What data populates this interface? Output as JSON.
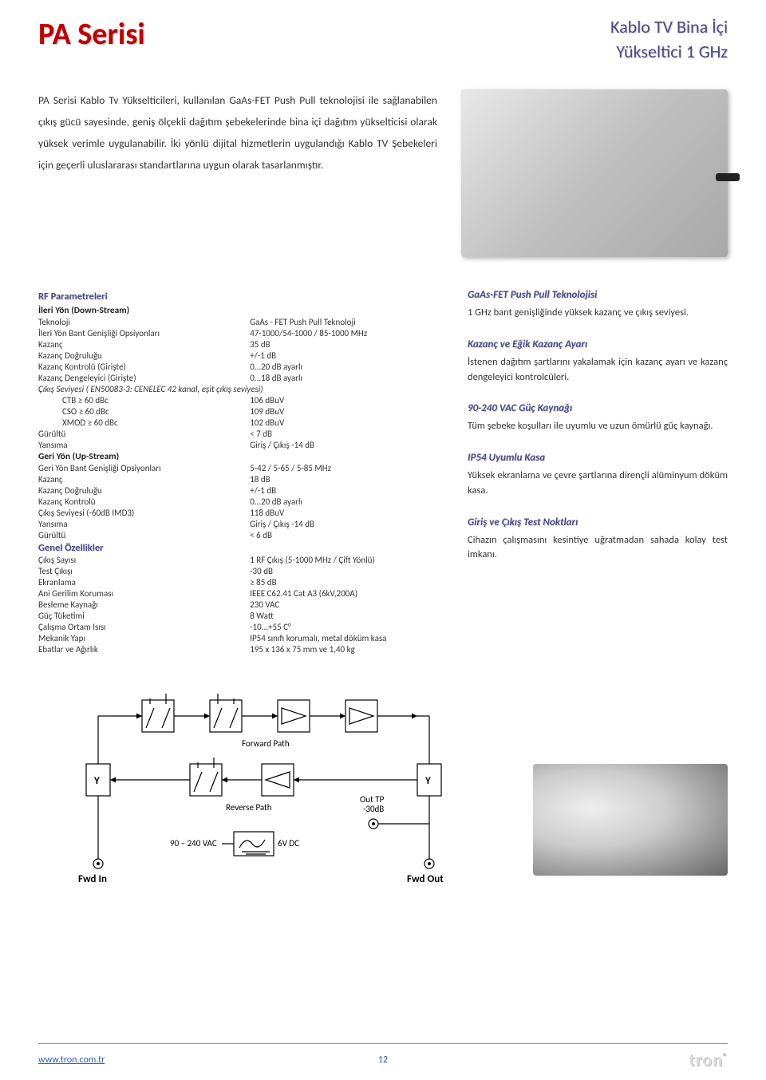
{
  "header": {
    "series": "PA Serisi",
    "sub1": "Kablo TV Bina İçi",
    "sub2": "Yükseltici 1 GHz"
  },
  "intro": "PA Serisi Kablo Tv Yükselticileri, kullanılan GaAs-FET Push Pull teknolojisi ile sağlanabilen çıkış gücü sayesinde, geniş ölçekli dağıtım şebekelerinde bina içi dağıtım yükselticisi olarak yüksek verimle uygulanabilir. İki yönlü dijital hizmetlerin uygulandığı Kablo TV Şebekeleri için geçerli uluslararası standartlarına uygun olarak tasarlanmıştır.",
  "specs": {
    "rf_header": "RF Parametreleri",
    "down_header": "İleri Yön (Down-Stream)",
    "down": [
      [
        "Teknoloji",
        "GaAs - FET Push Pull Teknoloji"
      ],
      [
        "İleri Yön Bant Genişliği Opsiyonları",
        "47-1000/54-1000 / 85-1000 MHz"
      ],
      [
        "Kazanç",
        "35 dB"
      ],
      [
        "Kazanç Doğruluğu",
        "+/-1 dB"
      ],
      [
        "Kazanç Kontrolü (Girişte)",
        "0...20 dB ayarlı"
      ],
      [
        "Kazanç Dengeleyici (Girişte)",
        "0...18 dB ayarlı"
      ]
    ],
    "cenelec": "Çıkış Seviyesi ( EN50083-3: CENELEC 42 kanal, eşit çıkış seviyesi)",
    "cenelec_rows": [
      [
        "CTB ≥ 60 dBc",
        "106 dBuV"
      ],
      [
        "CSO ≥ 60 dBc",
        "109 dBuV"
      ],
      [
        "XMOD ≥ 60 dBc",
        "102 dBuV"
      ]
    ],
    "down2": [
      [
        "Gürültü",
        "< 7 dB"
      ],
      [
        "Yansıma",
        "Giriş / Çıkış -14 dB"
      ]
    ],
    "up_header": "Geri Yön (Up-Stream)",
    "up": [
      [
        "Geri Yön Bant Genişliği Opsiyonları",
        "5-42 / 5-65 / 5-85 MHz"
      ],
      [
        "Kazanç",
        "18 dB"
      ],
      [
        "Kazanç Doğruluğu",
        "+/-1 dB"
      ],
      [
        "Kazanç Kontrolü",
        "0...20 dB ayarlı"
      ],
      [
        "Çıkış Seviyesi (-60dB IMD3)",
        "118 dBuV"
      ],
      [
        "Yansıma",
        "Giriş / Çıkış -14 dB"
      ],
      [
        "Gürültü",
        "< 6 dB"
      ]
    ],
    "gen_header": "Genel Özellikler",
    "gen": [
      [
        "Çıkış Sayısı",
        "1 RF Çıkış (5-1000 MHz / Çift Yönlü)"
      ],
      [
        "Test Çıkışı",
        "-30 dB"
      ],
      [
        "Ekranlama",
        "≥ 85 dB"
      ],
      [
        "Ani Gerilim Koruması",
        "IEEE C62.41 Cat A3 (6kV,200A)"
      ],
      [
        "Besleme Kaynağı",
        "230 VAC"
      ],
      [
        "Güç Tüketimi",
        "8 Watt"
      ],
      [
        "Çalışma Ortam Isısı",
        "-10...+55 C°"
      ],
      [
        "Mekanik Yapı",
        "IP54 sınıfı korumalı, metal döküm kasa"
      ],
      [
        "Ebatlar ve Ağırlık",
        "195 x 136 x 75 mm ve 1,40 kg"
      ]
    ]
  },
  "features": [
    {
      "title": "GaAs-FET Push Pull Teknolojisi",
      "text": "1 GHz bant genişliğinde yüksek kazanç ve çıkış seviyesi."
    },
    {
      "title": "Kazanç ve Eğik Kazanç Ayarı",
      "text": "İstenen dağıtım şartlarını yakalamak için kazanç ayarı ve kazanç dengeleyici kontrolcüleri."
    },
    {
      "title": "90-240 VAC Güç Kaynağı",
      "text": "Tüm şebeke koşulları ile uyumlu ve uzun ömürlü güç kaynağı."
    },
    {
      "title": "IP54 Uyumlu Kasa",
      "text": "Yüksek ekranlama ve çevre şartlarına dirençli alüminyum döküm kasa."
    },
    {
      "title": "Giriş ve Çıkış Test Noktları",
      "text": "Cihazın çalışmasını kesintiye uğratmadan sahada kolay test imkanı."
    }
  ],
  "diagram": {
    "forward": "Forward Path",
    "reverse": "Reverse Path",
    "outtp": "Out TP",
    "minus30": "-30dB",
    "vac": "90 – 240 VAC",
    "dc": "6V DC",
    "fwdin": "Fwd In",
    "fwdout": "Fwd Out",
    "y": "Y"
  },
  "footer": {
    "url": "www.tron.com.tr",
    "page": "12",
    "brand": "tron"
  }
}
